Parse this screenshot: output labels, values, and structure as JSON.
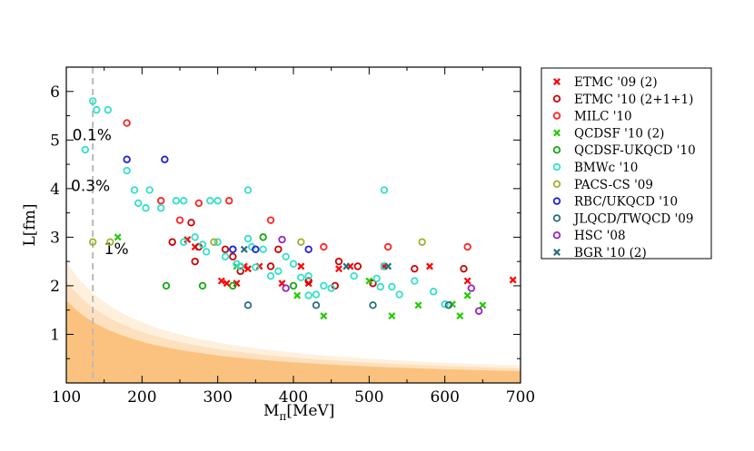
{
  "chart_data": {
    "type": "scatter",
    "xlabel": "M",
    "xlabel_sub": "π",
    "xlabel_unit": "[MeV]",
    "ylabel": "L[fm]",
    "xlim": [
      100,
      700
    ],
    "ylim": [
      0,
      6.5
    ],
    "xticks": [
      100,
      200,
      300,
      400,
      500,
      600,
      700
    ],
    "yticks": [
      1,
      2,
      3,
      4,
      5,
      6
    ],
    "physical_point_x": 135,
    "regions": [
      {
        "label": "0.1%",
        "k": 250,
        "color": "#fff0de",
        "label_at": [
          108,
          5.0
        ]
      },
      {
        "label": "0.3%",
        "k": 210,
        "color": "#fde0bd",
        "label_at": [
          106,
          3.95
        ]
      },
      {
        "label": "1%",
        "k": 170,
        "color": "#fbc27f",
        "label_at": [
          150,
          2.65
        ]
      }
    ],
    "legend": {
      "placement": "right",
      "entries": [
        {
          "label": "ETMC '09 (2)",
          "color": "#ff0000",
          "marker": "x"
        },
        {
          "label": "ETMC '10 (2+1+1)",
          "color": "#cc0000",
          "marker": "o"
        },
        {
          "label": "MILC '10",
          "color": "#ff2222",
          "marker": "o"
        },
        {
          "label": "QCDSF '10 (2)",
          "color": "#22cc00",
          "marker": "x"
        },
        {
          "label": "QCDSF-UKQCD '10",
          "color": "#11aa11",
          "marker": "o"
        },
        {
          "label": "BMWc '10",
          "color": "#33e0c8",
          "marker": "o"
        },
        {
          "label": "PACS-CS '09",
          "color": "#a0b030",
          "marker": "o"
        },
        {
          "label": "RBC/UKQCD '10",
          "color": "#2020dd",
          "marker": "o"
        },
        {
          "label": "JLQCD/TWQCD '09",
          "color": "#2a6e7e",
          "marker": "o"
        },
        {
          "label": "HSC '08",
          "color": "#9a20c8",
          "marker": "o"
        },
        {
          "label": "BGR '10 (2)",
          "color": "#2a6e7e",
          "marker": "x"
        }
      ]
    },
    "series": [
      {
        "name": "ETMC '09 (2)",
        "marker": "x",
        "color": "#ff0000",
        "points": [
          [
            260,
            2.95
          ],
          [
            270,
            2.8
          ],
          [
            305,
            2.1
          ],
          [
            312,
            2.05
          ],
          [
            325,
            2.05
          ],
          [
            335,
            2.4
          ],
          [
            340,
            2.35
          ],
          [
            355,
            2.4
          ],
          [
            385,
            2.05
          ],
          [
            410,
            2.4
          ],
          [
            420,
            2.05
          ],
          [
            460,
            2.35
          ],
          [
            475,
            2.4
          ],
          [
            520,
            2.4
          ],
          [
            580,
            2.4
          ],
          [
            630,
            2.1
          ],
          [
            690,
            2.12
          ]
        ]
      },
      {
        "name": "ETMC '10 (2+1+1)",
        "marker": "o",
        "color": "#cc0000",
        "points": [
          [
            240,
            2.9
          ],
          [
            265,
            3.3
          ],
          [
            270,
            2.5
          ],
          [
            275,
            2.8
          ],
          [
            310,
            2.75
          ],
          [
            320,
            2.6
          ],
          [
            330,
            2.3
          ],
          [
            370,
            2.4
          ],
          [
            380,
            2.75
          ],
          [
            420,
            2.1
          ],
          [
            455,
            2.0
          ],
          [
            460,
            2.5
          ],
          [
            485,
            2.4
          ],
          [
            505,
            2.05
          ],
          [
            520,
            2.4
          ],
          [
            560,
            2.35
          ],
          [
            625,
            2.35
          ]
        ]
      },
      {
        "name": "MILC '10",
        "marker": "o",
        "color": "#ff2222",
        "points": [
          [
            180,
            5.35
          ],
          [
            225,
            3.75
          ],
          [
            250,
            3.35
          ],
          [
            275,
            3.7
          ],
          [
            315,
            3.75
          ],
          [
            370,
            3.35
          ],
          [
            440,
            2.8
          ],
          [
            525,
            2.8
          ],
          [
            630,
            2.8
          ]
        ]
      },
      {
        "name": "QCDSF '10 (2)",
        "marker": "x",
        "color": "#22cc00",
        "points": [
          [
            168,
            3.0
          ],
          [
            325,
            2.4
          ],
          [
            405,
            1.8
          ],
          [
            440,
            1.38
          ],
          [
            500,
            2.1
          ],
          [
            530,
            1.38
          ],
          [
            565,
            1.6
          ],
          [
            610,
            1.62
          ],
          [
            620,
            1.38
          ],
          [
            630,
            1.8
          ],
          [
            650,
            1.6
          ]
        ]
      },
      {
        "name": "QCDSF-UKQCD '10",
        "marker": "o",
        "color": "#11aa11",
        "points": [
          [
            232,
            2.0
          ],
          [
            280,
            2.0
          ],
          [
            320,
            2.0
          ],
          [
            360,
            3.0
          ],
          [
            400,
            2.0
          ]
        ]
      },
      {
        "name": "BMWc '10",
        "marker": "o",
        "color": "#33e0c8",
        "points": [
          [
            125,
            4.8
          ],
          [
            135,
            5.8
          ],
          [
            140,
            5.62
          ],
          [
            155,
            5.62
          ],
          [
            180,
            4.37
          ],
          [
            190,
            3.97
          ],
          [
            195,
            3.7
          ],
          [
            205,
            3.6
          ],
          [
            210,
            3.97
          ],
          [
            225,
            3.6
          ],
          [
            245,
            3.75
          ],
          [
            255,
            3.75
          ],
          [
            255,
            2.9
          ],
          [
            270,
            3.0
          ],
          [
            280,
            2.85
          ],
          [
            285,
            2.7
          ],
          [
            290,
            3.75
          ],
          [
            300,
            3.75
          ],
          [
            300,
            2.9
          ],
          [
            310,
            2.6
          ],
          [
            320,
            2.75
          ],
          [
            325,
            2.45
          ],
          [
            330,
            2.4
          ],
          [
            340,
            3.97
          ],
          [
            340,
            2.97
          ],
          [
            345,
            2.8
          ],
          [
            350,
            2.38
          ],
          [
            360,
            2.75
          ],
          [
            370,
            2.2
          ],
          [
            380,
            2.3
          ],
          [
            390,
            2.6
          ],
          [
            400,
            2.45
          ],
          [
            410,
            2.17
          ],
          [
            420,
            2.2
          ],
          [
            420,
            1.8
          ],
          [
            430,
            1.82
          ],
          [
            440,
            2.0
          ],
          [
            450,
            1.95
          ],
          [
            480,
            2.2
          ],
          [
            510,
            2.15
          ],
          [
            515,
            1.98
          ],
          [
            520,
            3.97
          ],
          [
            520,
            2.4
          ],
          [
            530,
            1.98
          ],
          [
            540,
            1.82
          ],
          [
            560,
            2.1
          ],
          [
            585,
            1.88
          ],
          [
            600,
            1.62
          ]
        ]
      },
      {
        "name": "PACS-CS '09",
        "marker": "o",
        "color": "#a0b030",
        "points": [
          [
            135,
            2.9
          ],
          [
            158,
            2.9
          ],
          [
            295,
            2.9
          ],
          [
            410,
            2.9
          ],
          [
            570,
            2.9
          ]
        ]
      },
      {
        "name": "RBC/UKQCD '10",
        "marker": "o",
        "color": "#2020dd",
        "points": [
          [
            180,
            4.6
          ],
          [
            230,
            4.6
          ],
          [
            320,
            2.75
          ],
          [
            350,
            2.75
          ],
          [
            420,
            2.75
          ]
        ]
      },
      {
        "name": "JLQCD/TWQCD '09",
        "marker": "o",
        "color": "#2a6e7e",
        "points": [
          [
            340,
            1.6
          ],
          [
            430,
            1.6
          ],
          [
            505,
            1.6
          ],
          [
            605,
            1.6
          ]
        ]
      },
      {
        "name": "HSC '08",
        "marker": "o",
        "color": "#9a20c8",
        "points": [
          [
            385,
            2.95
          ],
          [
            390,
            1.95
          ],
          [
            635,
            1.95
          ],
          [
            645,
            1.48
          ]
        ]
      },
      {
        "name": "BGR '10 (2)",
        "marker": "x",
        "color": "#2a6e7e",
        "points": [
          [
            335,
            2.75
          ],
          [
            470,
            2.4
          ],
          [
            525,
            2.4
          ]
        ]
      }
    ]
  }
}
